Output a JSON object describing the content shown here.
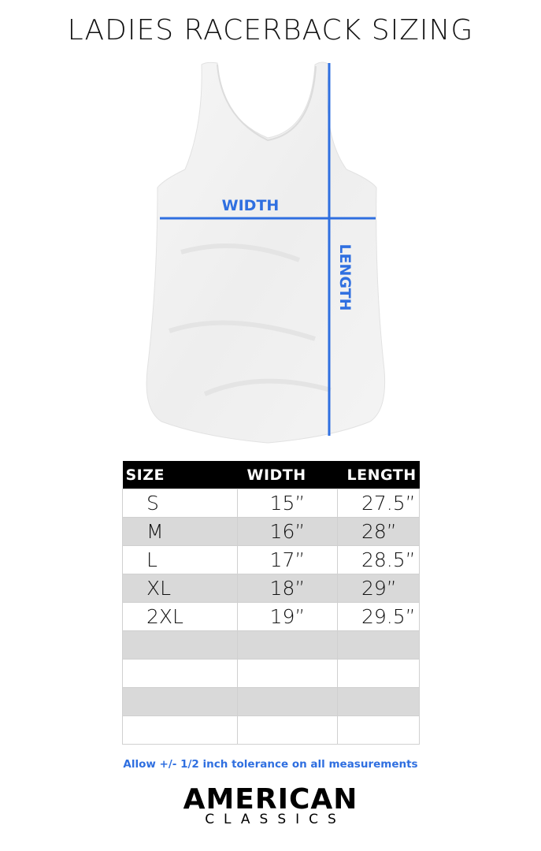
{
  "title": "LADIES RACERBACK SIZING",
  "diagram": {
    "width_label": "WIDTH",
    "length_label": "LENGTH",
    "accent_color": "#2f6fe0",
    "garment": "white racerback tank top"
  },
  "table": {
    "headers": [
      "SIZE",
      "WIDTH",
      "LENGTH"
    ],
    "rows": [
      [
        "S",
        "15”",
        "27.5”"
      ],
      [
        "M",
        "16”",
        "28”"
      ],
      [
        "L",
        "17”",
        "28.5”"
      ],
      [
        "XL",
        "18”",
        "29”"
      ],
      [
        "2XL",
        "19”",
        "29.5”"
      ],
      [
        "",
        "",
        ""
      ],
      [
        "",
        "",
        ""
      ],
      [
        "",
        "",
        ""
      ],
      [
        "",
        "",
        ""
      ]
    ]
  },
  "note": "Allow +/- 1/2 inch tolerance on all measurements",
  "logo": {
    "line1": "AMERICAN",
    "line2": "CLASSICS"
  }
}
